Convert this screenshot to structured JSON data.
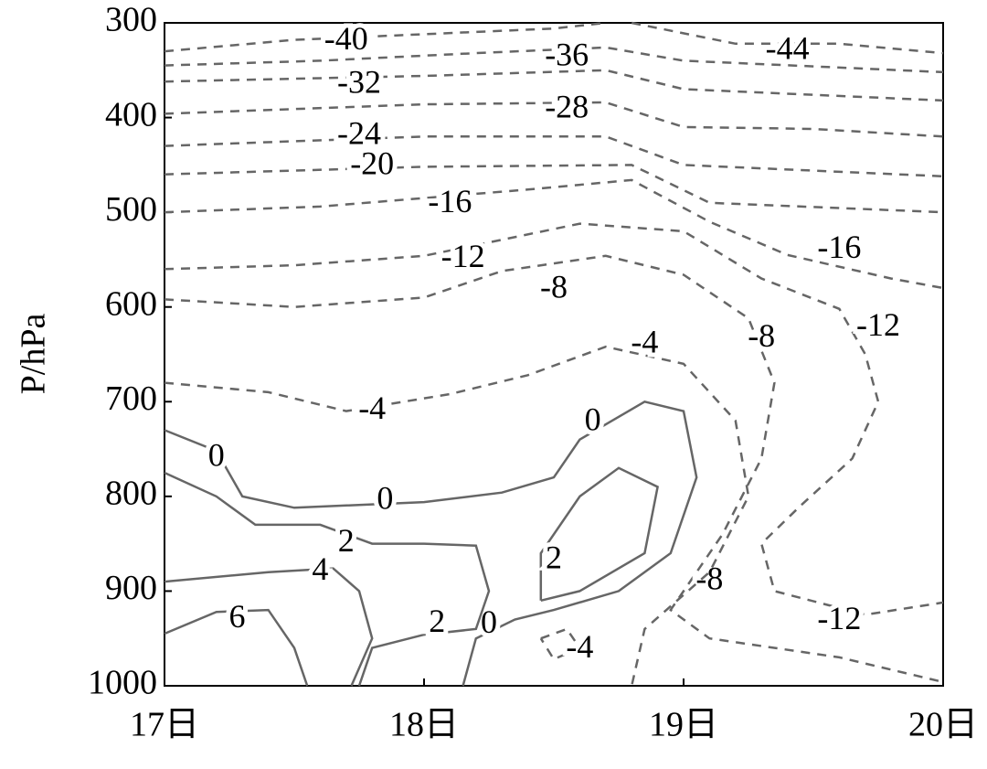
{
  "chart_data": {
    "type": "contour",
    "y_label": "P/hPa",
    "xlim": [
      17,
      20
    ],
    "ylim": [
      1000,
      300
    ],
    "xticks": [
      {
        "value": 17,
        "label": "17日"
      },
      {
        "value": 18,
        "label": "18日"
      },
      {
        "value": 19,
        "label": "19日"
      },
      {
        "value": 20,
        "label": "20日"
      }
    ],
    "yticks": [
      300,
      400,
      500,
      600,
      700,
      800,
      900,
      1000
    ],
    "color": "#666666",
    "negative_dashed": true,
    "contours": [
      {
        "level": -44,
        "x": [
          18.8,
          19.2,
          19.6,
          20.0
        ],
        "p": [
          300,
          322,
          322,
          332
        ],
        "label_x": [
          19.4
        ],
        "label_p": [
          330
        ]
      },
      {
        "level": -40,
        "x": [
          17.0,
          17.5,
          18.0,
          18.5,
          18.7
        ],
        "p": [
          330,
          318,
          312,
          306,
          300
        ],
        "label_x": [
          17.7
        ],
        "label_p": [
          320
        ]
      },
      {
        "level": -36,
        "x": [
          17.0,
          17.6,
          18.2,
          18.7,
          19.0,
          19.5,
          20.0
        ],
        "p": [
          345,
          340,
          332,
          326,
          340,
          346,
          352
        ],
        "label_x": [
          18.55
        ],
        "label_p": [
          337
        ]
      },
      {
        "level": -32,
        "x": [
          17.0,
          18.0,
          18.7,
          19.0,
          19.5,
          20.0
        ],
        "p": [
          362,
          356,
          350,
          370,
          376,
          382
        ],
        "label_x": [
          17.75
        ],
        "label_p": [
          366
        ]
      },
      {
        "level": -28,
        "x": [
          17.0,
          18.0,
          18.7,
          19.0,
          19.5,
          20.0
        ],
        "p": [
          396,
          386,
          384,
          410,
          412,
          420
        ],
        "label_x": [
          18.55
        ],
        "label_p": [
          392
        ]
      },
      {
        "level": -24,
        "x": [
          17.0,
          18.0,
          18.7,
          19.0,
          20.0
        ],
        "p": [
          430,
          420,
          420,
          450,
          462
        ],
        "label_x": [
          17.75
        ],
        "label_p": [
          420
        ]
      },
      {
        "level": -20,
        "x": [
          17.0,
          18.0,
          18.8,
          19.1,
          20.0
        ],
        "p": [
          460,
          452,
          450,
          490,
          500
        ],
        "label_x": [
          17.8
        ],
        "label_p": [
          452
        ]
      },
      {
        "level": -16,
        "x": [
          17.0,
          17.6,
          18.4,
          18.8,
          19.1,
          19.4,
          19.8,
          20.0
        ],
        "p": [
          500,
          494,
          476,
          466,
          510,
          545,
          570,
          580
        ],
        "label_x": [
          18.1,
          19.6
        ],
        "label_p": [
          492,
          540
        ]
      },
      {
        "level": -12,
        "x": [
          17.0,
          17.5,
          18.0,
          18.6,
          19.0,
          19.3,
          19.6,
          19.7,
          19.75,
          19.65,
          19.45,
          19.3,
          19.35,
          19.7,
          20.0
        ],
        "p": [
          560,
          556,
          546,
          512,
          520,
          570,
          602,
          650,
          700,
          760,
          810,
          850,
          900,
          925,
          912
        ],
        "label_x": [
          18.15,
          19.75,
          19.6
        ],
        "label_p": [
          550,
          622,
          932
        ]
      },
      {
        "level": -8,
        "x": [
          17.0,
          17.5,
          18.0,
          18.3,
          18.7,
          19.0,
          19.25,
          19.35,
          19.3,
          19.15,
          18.95,
          19.1,
          19.6,
          20.0
        ],
        "p": [
          592,
          600,
          590,
          562,
          546,
          566,
          612,
          680,
          760,
          840,
          920,
          950,
          970,
          996
        ],
        "label_x": [
          18.5,
          19.3,
          19.1
        ],
        "label_p": [
          582,
          634,
          890
        ]
      },
      {
        "level": -4,
        "x": [
          17.0,
          17.4,
          17.7,
          18.1,
          18.4,
          18.7,
          19.0,
          19.2,
          19.25,
          19.1,
          18.85,
          18.8
        ],
        "p": [
          680,
          690,
          710,
          692,
          672,
          642,
          660,
          720,
          800,
          880,
          940,
          1000
        ],
        "label_x": [
          17.8,
          18.85
        ],
        "label_p": [
          710,
          640
        ]
      },
      {
        "level": -4,
        "x": [
          18.45,
          18.55,
          18.6,
          18.5,
          18.45
        ],
        "p": [
          950,
          940,
          960,
          972,
          950
        ],
        "label_x": [
          18.6
        ],
        "label_p": [
          962
        ]
      },
      {
        "level": 0,
        "x": [
          17.0,
          17.2,
          17.3,
          17.5,
          18.0,
          18.3,
          18.5,
          18.6,
          18.85,
          19.0,
          19.05,
          18.95,
          18.75,
          18.5,
          18.35,
          18.2,
          18.15
        ],
        "p": [
          730,
          752,
          800,
          812,
          806,
          796,
          780,
          740,
          700,
          710,
          780,
          860,
          900,
          920,
          930,
          950,
          1000
        ],
        "label_x": [
          17.2,
          17.85,
          18.65,
          18.25
        ],
        "label_p": [
          760,
          805,
          722,
          936
        ]
      },
      {
        "level": 2,
        "x": [
          17.0,
          17.2,
          17.35,
          17.6,
          17.8,
          18.0,
          18.2,
          18.25,
          18.2,
          18.0,
          17.8,
          17.75
        ],
        "p": [
          775,
          800,
          830,
          830,
          850,
          850,
          852,
          900,
          940,
          946,
          960,
          1000
        ],
        "label_x": [
          17.7,
          18.05
        ],
        "label_p": [
          850,
          935
        ]
      },
      {
        "level": 2,
        "x": [
          18.45,
          18.45,
          18.6,
          18.75,
          18.9,
          18.85,
          18.6,
          18.45
        ],
        "p": [
          910,
          860,
          800,
          770,
          790,
          860,
          900,
          910
        ],
        "label_x": [
          18.5
        ],
        "label_p": [
          868
        ]
      },
      {
        "level": 4,
        "x": [
          17.0,
          17.4,
          17.65,
          17.75,
          17.8,
          17.72
        ],
        "p": [
          890,
          880,
          876,
          900,
          950,
          1000
        ],
        "label_x": [
          17.6
        ],
        "label_p": [
          880
        ]
      },
      {
        "level": 6,
        "x": [
          17.0,
          17.2,
          17.4,
          17.5,
          17.55
        ],
        "p": [
          945,
          922,
          920,
          960,
          1000
        ],
        "label_x": [
          17.28
        ],
        "label_p": [
          930
        ]
      }
    ]
  }
}
